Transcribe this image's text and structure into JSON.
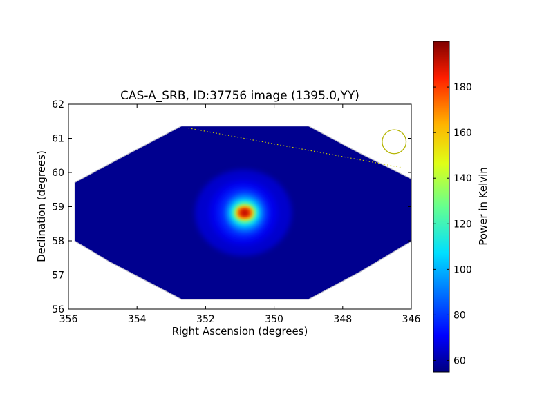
{
  "chart_data": {
    "type": "heatmap",
    "title": "CAS-A_SRB, ID:37756 image (1395.0,YY)",
    "xlabel": "Right Ascension (degrees)",
    "ylabel": "Declination (degrees)",
    "xlim": [
      356,
      346
    ],
    "ylim": [
      56,
      62
    ],
    "x_ticks": [
      "356",
      "354",
      "352",
      "350",
      "348",
      "346"
    ],
    "y_ticks": [
      "56",
      "57",
      "58",
      "59",
      "60",
      "61",
      "62"
    ],
    "colorbar": {
      "label": "Power in Kelvin",
      "range": [
        55,
        200
      ],
      "ticks": [
        "60",
        "80",
        "100",
        "120",
        "140",
        "160",
        "180"
      ],
      "colormap": "jet"
    },
    "coverage_polygon": [
      [
        355.8,
        59.7
      ],
      [
        354.6,
        60.35
      ],
      [
        352.7,
        61.35
      ],
      [
        349.0,
        61.35
      ],
      [
        347.5,
        60.55
      ],
      [
        346.0,
        59.8
      ],
      [
        346.0,
        58.0
      ],
      [
        347.5,
        57.1
      ],
      [
        349.0,
        56.3
      ],
      [
        352.7,
        56.3
      ],
      [
        354.8,
        57.4
      ],
      [
        355.8,
        58.0
      ]
    ],
    "peak": {
      "ra": 350.9,
      "dec": 58.82,
      "value": 200
    },
    "background_value": 56,
    "track_line": {
      "from": [
        352.5,
        61.3
      ],
      "to": [
        346.3,
        60.15
      ],
      "color": "#c8c800"
    },
    "beam_circle": {
      "ra": 346.5,
      "dec": 60.9,
      "radius_deg": 0.35,
      "color": "#b4b400"
    }
  }
}
